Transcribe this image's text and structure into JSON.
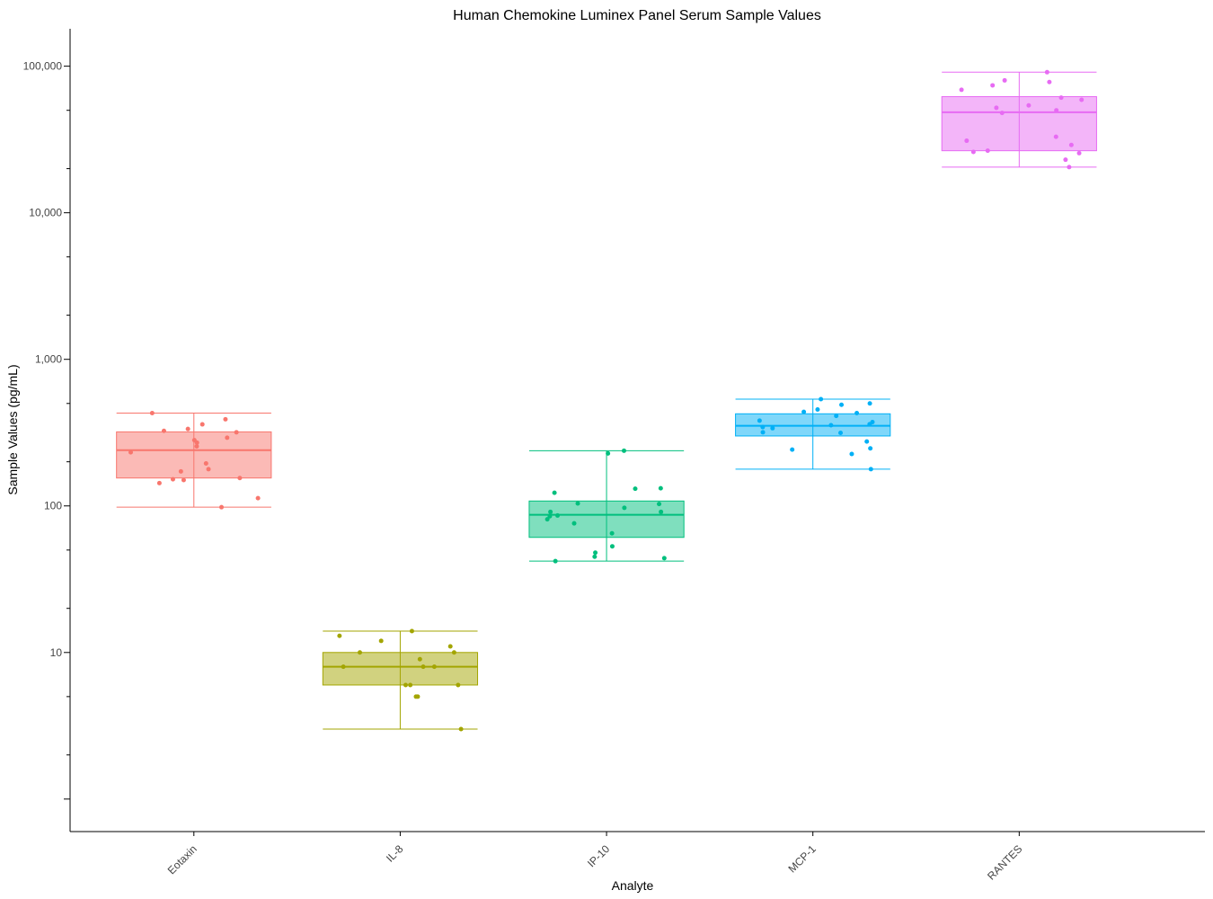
{
  "chart_data": {
    "type": "box",
    "title": "Human Chemokine Luminex Panel Serum Sample Values",
    "xlabel": "Analyte",
    "ylabel": "Sample Values (pg/mL)",
    "y_scale": "log10",
    "ylim": [
      0.6,
      180000
    ],
    "y_ticks": [
      {
        "value": 10,
        "label": "10"
      },
      {
        "value": 100,
        "label": "100"
      },
      {
        "value": 1000,
        "label": "1,000"
      },
      {
        "value": 10000,
        "label": "10,000"
      },
      {
        "value": 100000,
        "label": "100,000"
      }
    ],
    "grid": false,
    "categories": [
      "Eotaxin",
      "IL-8",
      "IP-10",
      "MCP-1",
      "RANTES"
    ],
    "series": [
      {
        "category": "Eotaxin",
        "color": "#F8766D",
        "box": {
          "min": 98,
          "q1": 155,
          "median": 240,
          "q3": 320,
          "max": 430
        },
        "points": [
          430,
          390,
          360,
          335,
          325,
          318,
          292,
          281,
          270,
          255,
          232,
          195,
          178,
          172,
          155,
          152,
          150,
          143,
          113,
          98
        ]
      },
      {
        "category": "IL-8",
        "color": "#A3A500",
        "box": {
          "min": 3,
          "q1": 6,
          "median": 8,
          "q3": 10,
          "max": 14
        },
        "points": [
          14,
          13,
          12,
          11,
          10,
          10,
          9,
          8,
          8,
          8,
          6,
          6,
          6,
          5,
          5,
          3
        ]
      },
      {
        "category": "IP-10",
        "color": "#00BF7D",
        "box": {
          "min": 42,
          "q1": 61,
          "median": 87,
          "q3": 108,
          "max": 238
        },
        "points": [
          238,
          228,
          132,
          131,
          123,
          104,
          103,
          97,
          91,
          91,
          86,
          85,
          81,
          76,
          65,
          53,
          48,
          45,
          44,
          42
        ]
      },
      {
        "category": "MCP-1",
        "color": "#00B0F6",
        "box": {
          "min": 178,
          "q1": 300,
          "median": 352,
          "q3": 425,
          "max": 535
        },
        "points": [
          535,
          500,
          490,
          455,
          438,
          430,
          411,
          382,
          373,
          361,
          355,
          345,
          339,
          318,
          315,
          275,
          247,
          242,
          226,
          178
        ]
      },
      {
        "category": "RANTES",
        "color": "#E76BF3",
        "box": {
          "min": 20500,
          "q1": 26500,
          "median": 48500,
          "q3": 62000,
          "max": 91000
        },
        "points": [
          91000,
          80000,
          78000,
          74000,
          69000,
          61000,
          59000,
          54000,
          52000,
          50000,
          48000,
          33000,
          31000,
          29000,
          26500,
          26000,
          25500,
          23000,
          20500
        ]
      }
    ]
  }
}
